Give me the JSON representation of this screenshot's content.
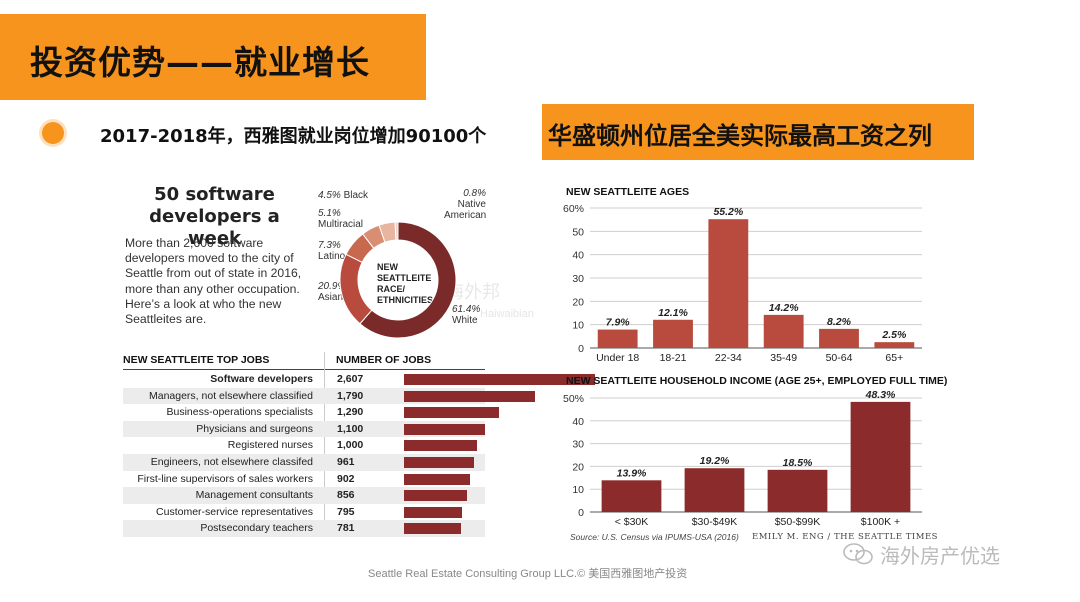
{
  "header": {
    "title": "投资优势——就业增长",
    "subtitle": "2017-2018年，西雅图就业岗位增加90100个",
    "highlight": "华盛顿州位居全美实际最高工资之列"
  },
  "left": {
    "headline_line1": "50 software",
    "headline_line2": "developers a week",
    "intro": "More than 2,600 software developers moved to the city of Seattle from out of state in 2016, more than any other occupation. Here’s a look at who the new Seattleites are.",
    "table_header_jobs": "NEW SEATTLEITE TOP JOBS",
    "table_header_num": "NUMBER OF JOBS"
  },
  "watermark": {
    "line1": "海外邦",
    "line2": "Haiwaibian"
  },
  "footer": {
    "text": "Seattle Real Estate Consulting Group LLC.© 美国西雅图地产投资",
    "logo": "海外房产优选"
  },
  "colors": {
    "accent": "#f7941d",
    "bar_light": "#b94b3e",
    "bar_dark": "#8b2b2b",
    "donut": [
      "#7b2a2a",
      "#b94b3e",
      "#c8684f",
      "#d98d73",
      "#e8b5a0",
      "#f0d0c4"
    ]
  },
  "chart_data": [
    {
      "type": "pie",
      "title": "NEW SEATTLEITE RACE/ ETHNICITIES",
      "center_label_lines": [
        "NEW SEATTLEITE",
        "RACE/",
        "ETHNICITIES"
      ],
      "slices": [
        {
          "label": "White",
          "value": 61.4,
          "display": "61.4%"
        },
        {
          "label": "Asian",
          "value": 20.9,
          "display": "20.9%"
        },
        {
          "label": "Latino",
          "value": 7.3,
          "display": "7.3%"
        },
        {
          "label": "Multiracial",
          "value": 5.1,
          "display": "5.1%"
        },
        {
          "label": "Black",
          "value": 4.5,
          "display": "4.5%"
        },
        {
          "label": "Native American",
          "value": 0.8,
          "display": "0.8%"
        }
      ]
    },
    {
      "type": "bar",
      "orientation": "horizontal",
      "title": "NEW SEATTLEITE TOP JOBS",
      "categories": [
        "Software developers",
        "Managers, not elsewhere classified",
        "Business-operations specialists",
        "Physicians and surgeons",
        "Registered nurses",
        "Engineers, not elsewhere classifed",
        "First-line supervisors of sales workers",
        "Management consultants",
        "Customer-service representatives",
        "Postsecondary teachers"
      ],
      "values": [
        2607,
        1790,
        1290,
        1100,
        1000,
        961,
        902,
        856,
        795,
        781
      ],
      "labels": [
        "2,607",
        "1,790",
        "1,290",
        "1,100",
        "1,000",
        "961",
        "902",
        "856",
        "795",
        "781"
      ],
      "xlim": [
        0,
        2607
      ]
    },
    {
      "type": "bar",
      "title": "NEW SEATTLEITE AGES",
      "categories": [
        "Under 18",
        "18-21",
        "22-34",
        "35-49",
        "50-64",
        "65+"
      ],
      "values": [
        7.9,
        12.1,
        55.2,
        14.2,
        8.2,
        2.5
      ],
      "labels": [
        "7.9%",
        "12.1%",
        "55.2%",
        "14.2%",
        "8.2%",
        "2.5%"
      ],
      "yticks": [
        "0",
        "10",
        "20",
        "30",
        "40",
        "50",
        "60%"
      ],
      "ylim": [
        0,
        60
      ]
    },
    {
      "type": "bar",
      "title": "NEW SEATTLEITE HOUSEHOLD INCOME (AGE 25+, EMPLOYED FULL TIME)",
      "categories": [
        "< $30K",
        "$30-$49K",
        "$50-$99K",
        "$100K +"
      ],
      "values": [
        13.9,
        19.2,
        18.5,
        48.3
      ],
      "labels": [
        "13.9%",
        "19.2%",
        "18.5%",
        "48.3%"
      ],
      "yticks": [
        "0",
        "10",
        "20",
        "30",
        "40",
        "50%"
      ],
      "ylim": [
        0,
        50
      ],
      "source": "Source: U.S. Census via IPUMS-USA (2016)",
      "credit": "EMILY M. ENG / THE SEATTLE TIMES"
    }
  ]
}
